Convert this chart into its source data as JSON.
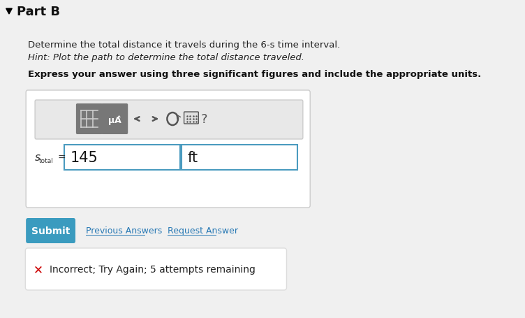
{
  "background_color": "#f0f0f0",
  "part_label": "Part B",
  "description_line1": "Determine the total distance it travels during the 6-s time interval.",
  "description_line2": "Hint: Plot the path to determine the total distance traveled.",
  "bold_instruction": "Express your answer using three significant figures and include the appropriate units.",
  "variable_label": "s",
  "variable_sub": "total",
  "equals": " = ",
  "answer_value": "145",
  "unit_value": "ft",
  "submit_text": "Submit",
  "submit_bg": "#3a9bbf",
  "submit_text_color": "#ffffff",
  "prev_answers_text": "Previous Answers",
  "request_answer_text": "Request Answer",
  "link_color": "#2a7ab5",
  "feedback_text": "Incorrect; Try Again; 5 attempts remaining",
  "feedback_bg": "#ffffff",
  "feedback_border": "#dddddd",
  "x_color": "#cc0000",
  "toolbar_bg": "#e8e8e8",
  "toolbar_border": "#cccccc",
  "input_border": "#4a9bbf",
  "panel_bg": "#ffffff",
  "panel_border": "#cccccc",
  "arrow_color": "#555555"
}
